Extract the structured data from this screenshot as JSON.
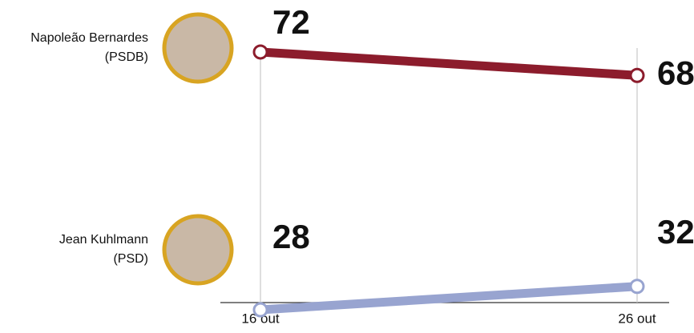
{
  "chart_data": {
    "type": "line",
    "categories": [
      "16 out",
      "26 out"
    ],
    "series": [
      {
        "name": "Napoleão Bernardes",
        "party": "(PSDB)",
        "color": "#8c1c2c",
        "values": [
          72,
          68
        ]
      },
      {
        "name": "Jean Kuhlmann",
        "party": "(PSD)",
        "color": "#98a4d0",
        "values": [
          28,
          32
        ]
      }
    ],
    "ylim": [
      25,
      75
    ]
  }
}
